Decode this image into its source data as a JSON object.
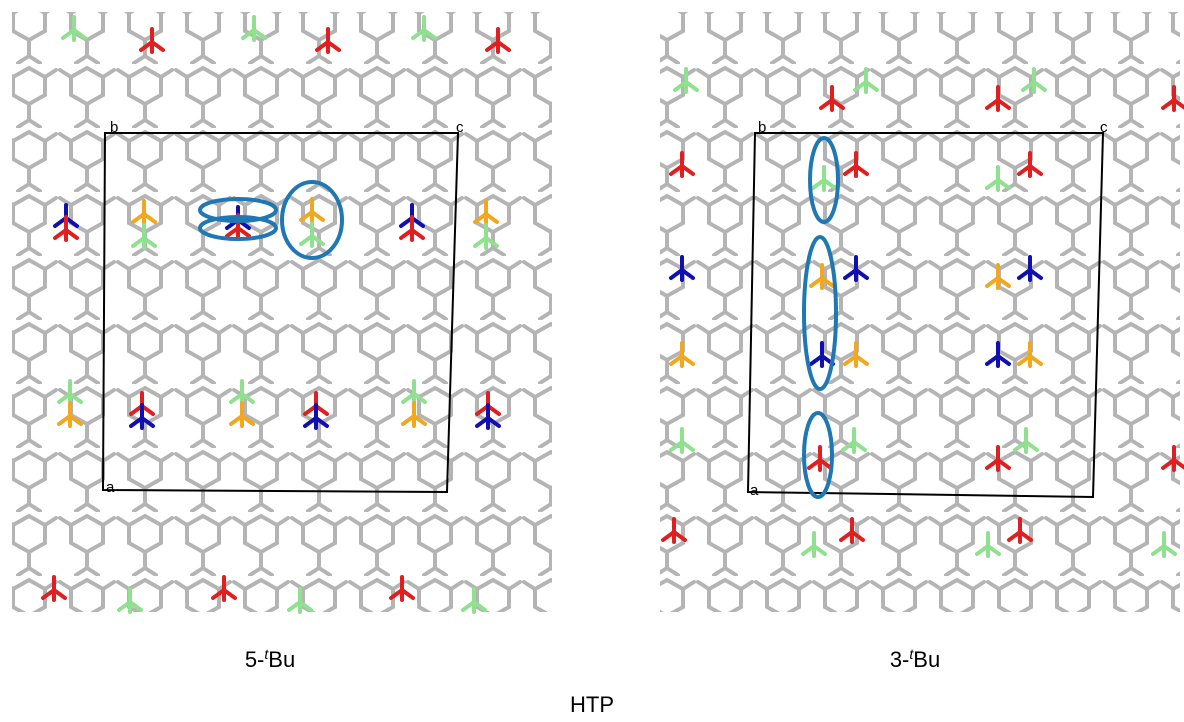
{
  "panels": [
    {
      "cell_labels": [
        "a",
        "b",
        "c"
      ],
      "caption": [
        "5-",
        "t",
        "Bu"
      ]
    },
    {
      "cell_labels": [
        "a",
        "b",
        "c"
      ],
      "caption": [
        "3-",
        "t",
        "Bu"
      ]
    }
  ],
  "footer": "HTP"
}
